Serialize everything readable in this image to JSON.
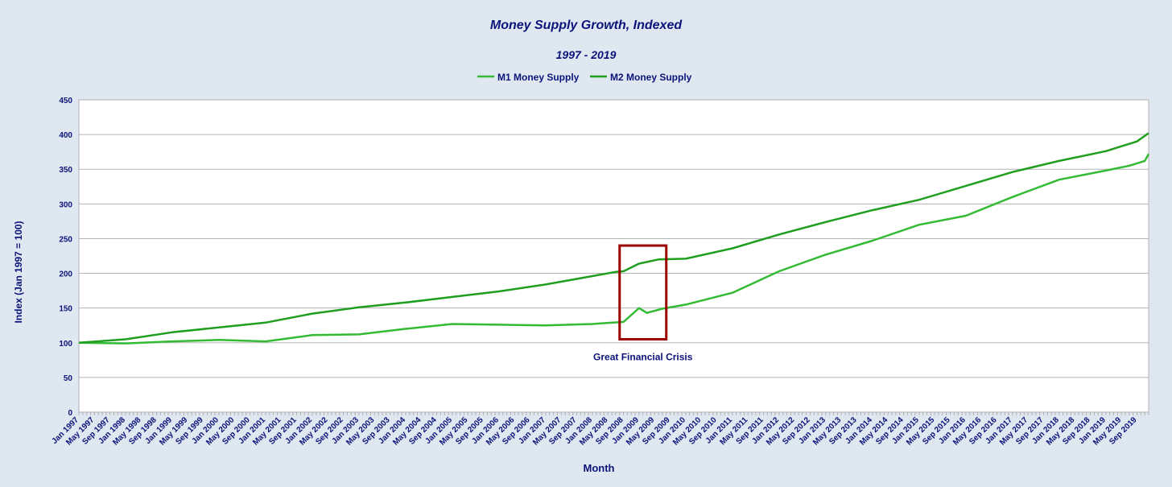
{
  "chart_data": {
    "type": "line",
    "title": "Money Supply Growth, Indexed",
    "subtitle": "1997 - 2019",
    "xlabel": "Month",
    "ylabel": "Index (Jan 1997 = 100)",
    "ylim": [
      0,
      450
    ],
    "yticks": [
      0,
      50,
      100,
      150,
      200,
      250,
      300,
      350,
      400,
      450
    ],
    "grid": true,
    "legend_position": "top-center",
    "x_range": [
      "Jan 1997",
      "Dec 2019"
    ],
    "x_tick_labels": [
      "Jan 1997",
      "May 1997",
      "Sep 1997",
      "Jan 1998",
      "May 1998",
      "Sep 1998",
      "Jan 1999",
      "May 1999",
      "Sep 1999",
      "Jan 2000",
      "May 2000",
      "Sep 2000",
      "Jan 2001",
      "May 2001",
      "Sep 2001",
      "Jan 2002",
      "May 2002",
      "Sep 2002",
      "Jan 2003",
      "May 2003",
      "Sep 2003",
      "Jan 2004",
      "May 2004",
      "Sep 2004",
      "Jan 2005",
      "May 2005",
      "Sep 2005",
      "Jan 2006",
      "May 2006",
      "Sep 2006",
      "Jan 2007",
      "May 2007",
      "Sep 2007",
      "Jan 2008",
      "May 2008",
      "Sep 2008",
      "Jan 2009",
      "May 2009",
      "Sep 2009",
      "Jan 2010",
      "May 2010",
      "Sep 2010",
      "Jan 2011",
      "May 2011",
      "Sep 2011",
      "Jan 2012",
      "May 2012",
      "Sep 2012",
      "Jan 2013",
      "May 2013",
      "Sep 2013",
      "Jan 2014",
      "May 2014",
      "Sep 2014",
      "Jan 2015",
      "May 2015",
      "Sep 2015",
      "Jan 2016",
      "May 2016",
      "Sep 2016",
      "Jan 2017",
      "May 2017",
      "Sep 2017",
      "Jan 2018",
      "May 2018",
      "Sep 2018",
      "Jan 2019",
      "May 2019",
      "Sep 2019"
    ],
    "series": [
      {
        "name": "M1 Money Supply",
        "color": "#33bb33",
        "points": [
          [
            "Jan 1997",
            100
          ],
          [
            "Jan 1998",
            99
          ],
          [
            "Jan 1999",
            102
          ],
          [
            "Jan 2000",
            104
          ],
          [
            "Jan 2001",
            102
          ],
          [
            "Jan 2002",
            111
          ],
          [
            "Jan 2003",
            112
          ],
          [
            "Jan 2004",
            120
          ],
          [
            "Jan 2005",
            127
          ],
          [
            "Jan 2006",
            126
          ],
          [
            "Jan 2007",
            125
          ],
          [
            "Jan 2008",
            127
          ],
          [
            "Sep 2008",
            130
          ],
          [
            "Dec 2008",
            145
          ],
          [
            "Jan 2009",
            150
          ],
          [
            "Mar 2009",
            143
          ],
          [
            "Jul 2009",
            149
          ],
          [
            "Jan 2010",
            155
          ],
          [
            "Jan 2011",
            172
          ],
          [
            "Jan 2012",
            203
          ],
          [
            "Jan 2013",
            227
          ],
          [
            "Jan 2014",
            247
          ],
          [
            "Jan 2015",
            270
          ],
          [
            "Jan 2016",
            283
          ],
          [
            "Jan 2017",
            310
          ],
          [
            "Jan 2018",
            335
          ],
          [
            "Jan 2019",
            348
          ],
          [
            "Jul 2019",
            355
          ],
          [
            "Nov 2019",
            362
          ],
          [
            "Dec 2019",
            372
          ]
        ]
      },
      {
        "name": "M2 Money Supply",
        "color": "#1f9e1f",
        "points": [
          [
            "Jan 1997",
            100
          ],
          [
            "Jan 1998",
            105
          ],
          [
            "Jan 1999",
            115
          ],
          [
            "Jan 2000",
            122
          ],
          [
            "Jan 2001",
            129
          ],
          [
            "Jan 2002",
            142
          ],
          [
            "Jan 2003",
            151
          ],
          [
            "Jan 2004",
            158
          ],
          [
            "Jan 2005",
            166
          ],
          [
            "Jan 2006",
            174
          ],
          [
            "Jan 2007",
            184
          ],
          [
            "Jan 2008",
            196
          ],
          [
            "Jul 2008",
            202
          ],
          [
            "Sep 2008",
            203
          ],
          [
            "Jan 2009",
            214
          ],
          [
            "Jun 2009",
            220
          ],
          [
            "Jan 2010",
            221
          ],
          [
            "Jan 2011",
            236
          ],
          [
            "Jan 2012",
            256
          ],
          [
            "Jan 2013",
            274
          ],
          [
            "Jan 2014",
            291
          ],
          [
            "Jan 2015",
            306
          ],
          [
            "Jan 2016",
            326
          ],
          [
            "Jan 2017",
            346
          ],
          [
            "Jan 2018",
            362
          ],
          [
            "Jan 2019",
            376
          ],
          [
            "Sep 2019",
            390
          ],
          [
            "Dec 2019",
            402
          ]
        ]
      }
    ],
    "annotation": {
      "text": "Great Financial Crisis",
      "box_x": [
        "Aug 2008",
        "Aug 2009"
      ],
      "box_y": [
        105,
        240
      ],
      "box_color": "#9a0000"
    }
  }
}
